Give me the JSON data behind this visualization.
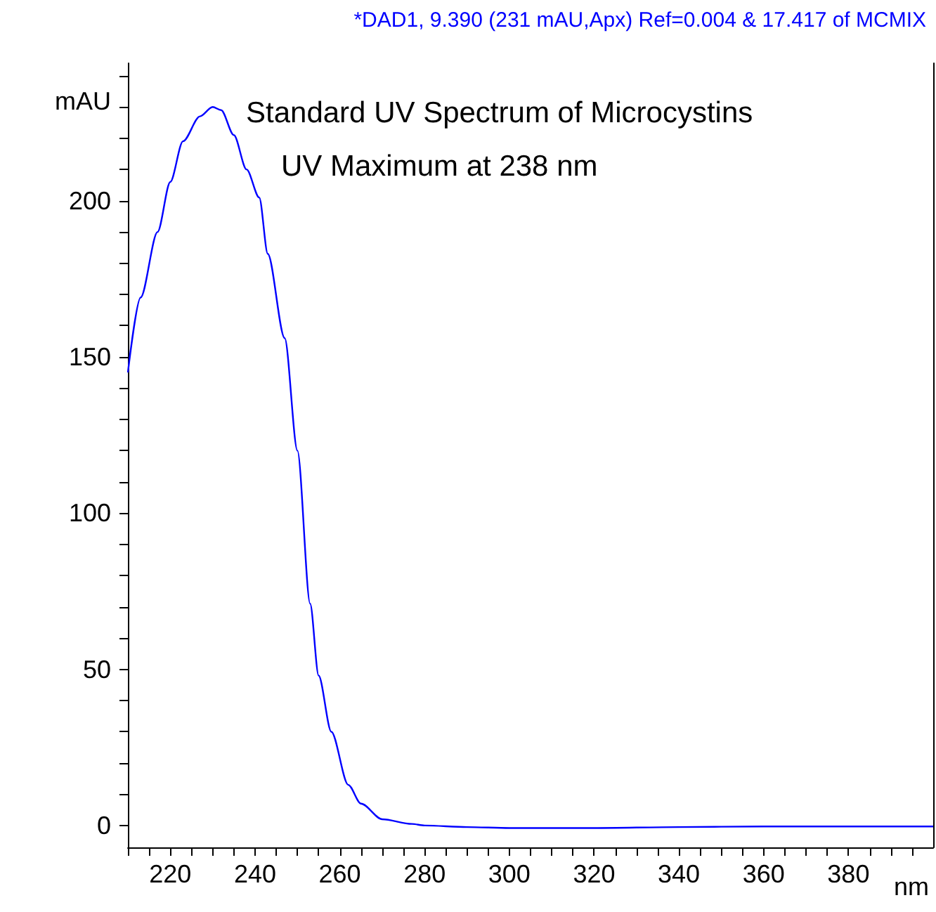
{
  "chart_data": {
    "type": "line",
    "title": "*DAD1, 9.390 (231 mAU,Apx) Ref=0.004 & 17.417 of MCMIX",
    "annotations": [
      "Standard UV Spectrum of Microcystins",
      "UV Maximum at 238 nm"
    ],
    "xlabel": "nm",
    "ylabel": "mAU",
    "x": [
      210,
      213,
      217,
      220,
      223,
      227,
      230,
      232,
      235,
      238,
      241,
      243,
      247,
      250,
      253,
      255,
      258,
      262,
      265,
      270,
      277,
      280,
      290,
      300,
      320,
      340,
      360,
      380,
      400
    ],
    "series": [
      {
        "color": "#0000ff",
        "values": [
          145,
          169,
          190,
          206,
          219,
          227,
          230,
          229,
          221,
          210,
          201,
          183,
          156,
          120,
          71,
          48,
          30,
          13,
          7,
          2,
          0.5,
          0,
          -0.5,
          -0.8,
          -0.8,
          -0.5,
          -0.3,
          -0.3,
          -0.3
        ]
      }
    ],
    "xlim": [
      210,
      400
    ],
    "ylim": [
      -7,
      244
    ],
    "xticks": [
      {
        "value": 210,
        "label": null
      },
      {
        "value": 215,
        "label": null
      },
      220,
      {
        "value": 225,
        "label": null
      },
      {
        "value": 230,
        "label": null
      },
      {
        "value": 235,
        "label": null
      },
      240,
      {
        "value": 245,
        "label": null
      },
      {
        "value": 250,
        "label": null
      },
      {
        "value": 255,
        "label": null
      },
      260,
      {
        "value": 265,
        "label": null
      },
      {
        "value": 270,
        "label": null
      },
      {
        "value": 275,
        "label": null
      },
      280,
      {
        "value": 285,
        "label": null
      },
      {
        "value": 290,
        "label": null
      },
      {
        "value": 295,
        "label": null
      },
      300,
      {
        "value": 305,
        "label": null
      },
      {
        "value": 310,
        "label": null
      },
      {
        "value": 315,
        "label": null
      },
      320,
      {
        "value": 325,
        "label": null
      },
      {
        "value": 330,
        "label": null
      },
      {
        "value": 335,
        "label": null
      },
      340,
      {
        "value": 345,
        "label": null
      },
      {
        "value": 350,
        "label": null
      },
      {
        "value": 355,
        "label": null
      },
      360,
      {
        "value": 365,
        "label": null
      },
      {
        "value": 370,
        "label": null
      },
      {
        "value": 375,
        "label": null
      },
      380,
      {
        "value": 385,
        "label": null
      },
      {
        "value": 390,
        "label": null
      },
      {
        "value": 395,
        "label": null
      }
    ],
    "yticks": [
      0,
      {
        "value": 10,
        "label": null
      },
      {
        "value": 20,
        "label": null
      },
      {
        "value": 30,
        "label": null
      },
      {
        "value": 40,
        "label": null
      },
      50,
      {
        "value": 60,
        "label": null
      },
      {
        "value": 70,
        "label": null
      },
      {
        "value": 80,
        "label": null
      },
      {
        "value": 90,
        "label": null
      },
      100,
      {
        "value": 110,
        "label": null
      },
      {
        "value": 120,
        "label": null
      },
      {
        "value": 130,
        "label": null
      },
      {
        "value": 140,
        "label": null
      },
      150,
      {
        "value": 160,
        "label": null
      },
      {
        "value": 170,
        "label": null
      },
      {
        "value": 180,
        "label": null
      },
      {
        "value": 190,
        "label": null
      },
      200,
      {
        "value": 210,
        "label": null
      },
      {
        "value": 220,
        "label": null
      },
      {
        "value": 230,
        "label": null
      },
      {
        "value": 240,
        "label": null
      }
    ],
    "grid": false,
    "marker": "none",
    "line_style": "solid"
  }
}
